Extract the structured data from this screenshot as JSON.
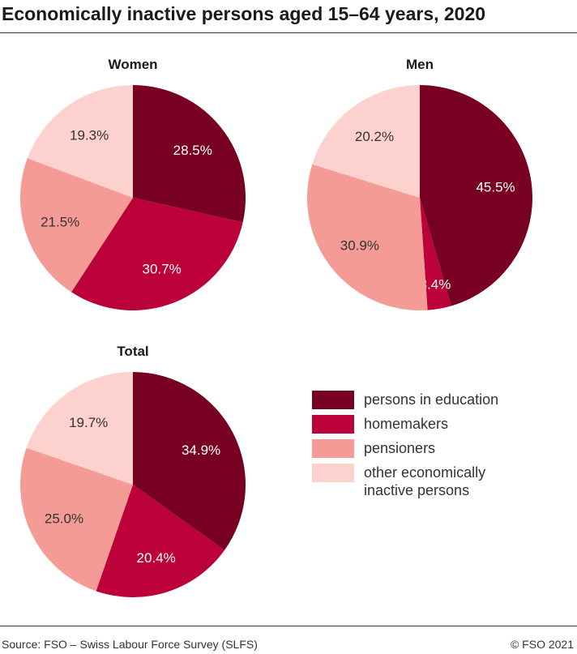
{
  "title": "Economically inactive persons aged 15–64 years, 2020",
  "source": "Source: FSO – Swiss Labour Force Survey (SLFS)",
  "copyright": "© FSO 2021",
  "chart_data": {
    "type": "pie",
    "categories": [
      "persons in education",
      "homemakers",
      "pensioners",
      "other economically inactive persons"
    ],
    "colors": [
      "#780022",
      "#bb003a",
      "#f59b95",
      "#fdd1cd"
    ],
    "label_colors": [
      "#ffffff",
      "#ffffff",
      "#333333",
      "#333333"
    ],
    "legend_position": "right",
    "charts": [
      {
        "title": "Women",
        "values": [
          28.5,
          30.7,
          21.5,
          19.3
        ],
        "labels": [
          "28.5%",
          "30.7%",
          "21.5%",
          "19.3%"
        ]
      },
      {
        "title": "Men",
        "values": [
          45.5,
          3.4,
          30.9,
          20.2
        ],
        "labels": [
          "45.5%",
          "3.4%",
          "30.9%",
          "20.2%"
        ]
      },
      {
        "title": "Total",
        "values": [
          34.9,
          20.4,
          25.0,
          19.7
        ],
        "labels": [
          "34.9%",
          "20.4%",
          "25.0%",
          "19.7%"
        ]
      }
    ]
  }
}
